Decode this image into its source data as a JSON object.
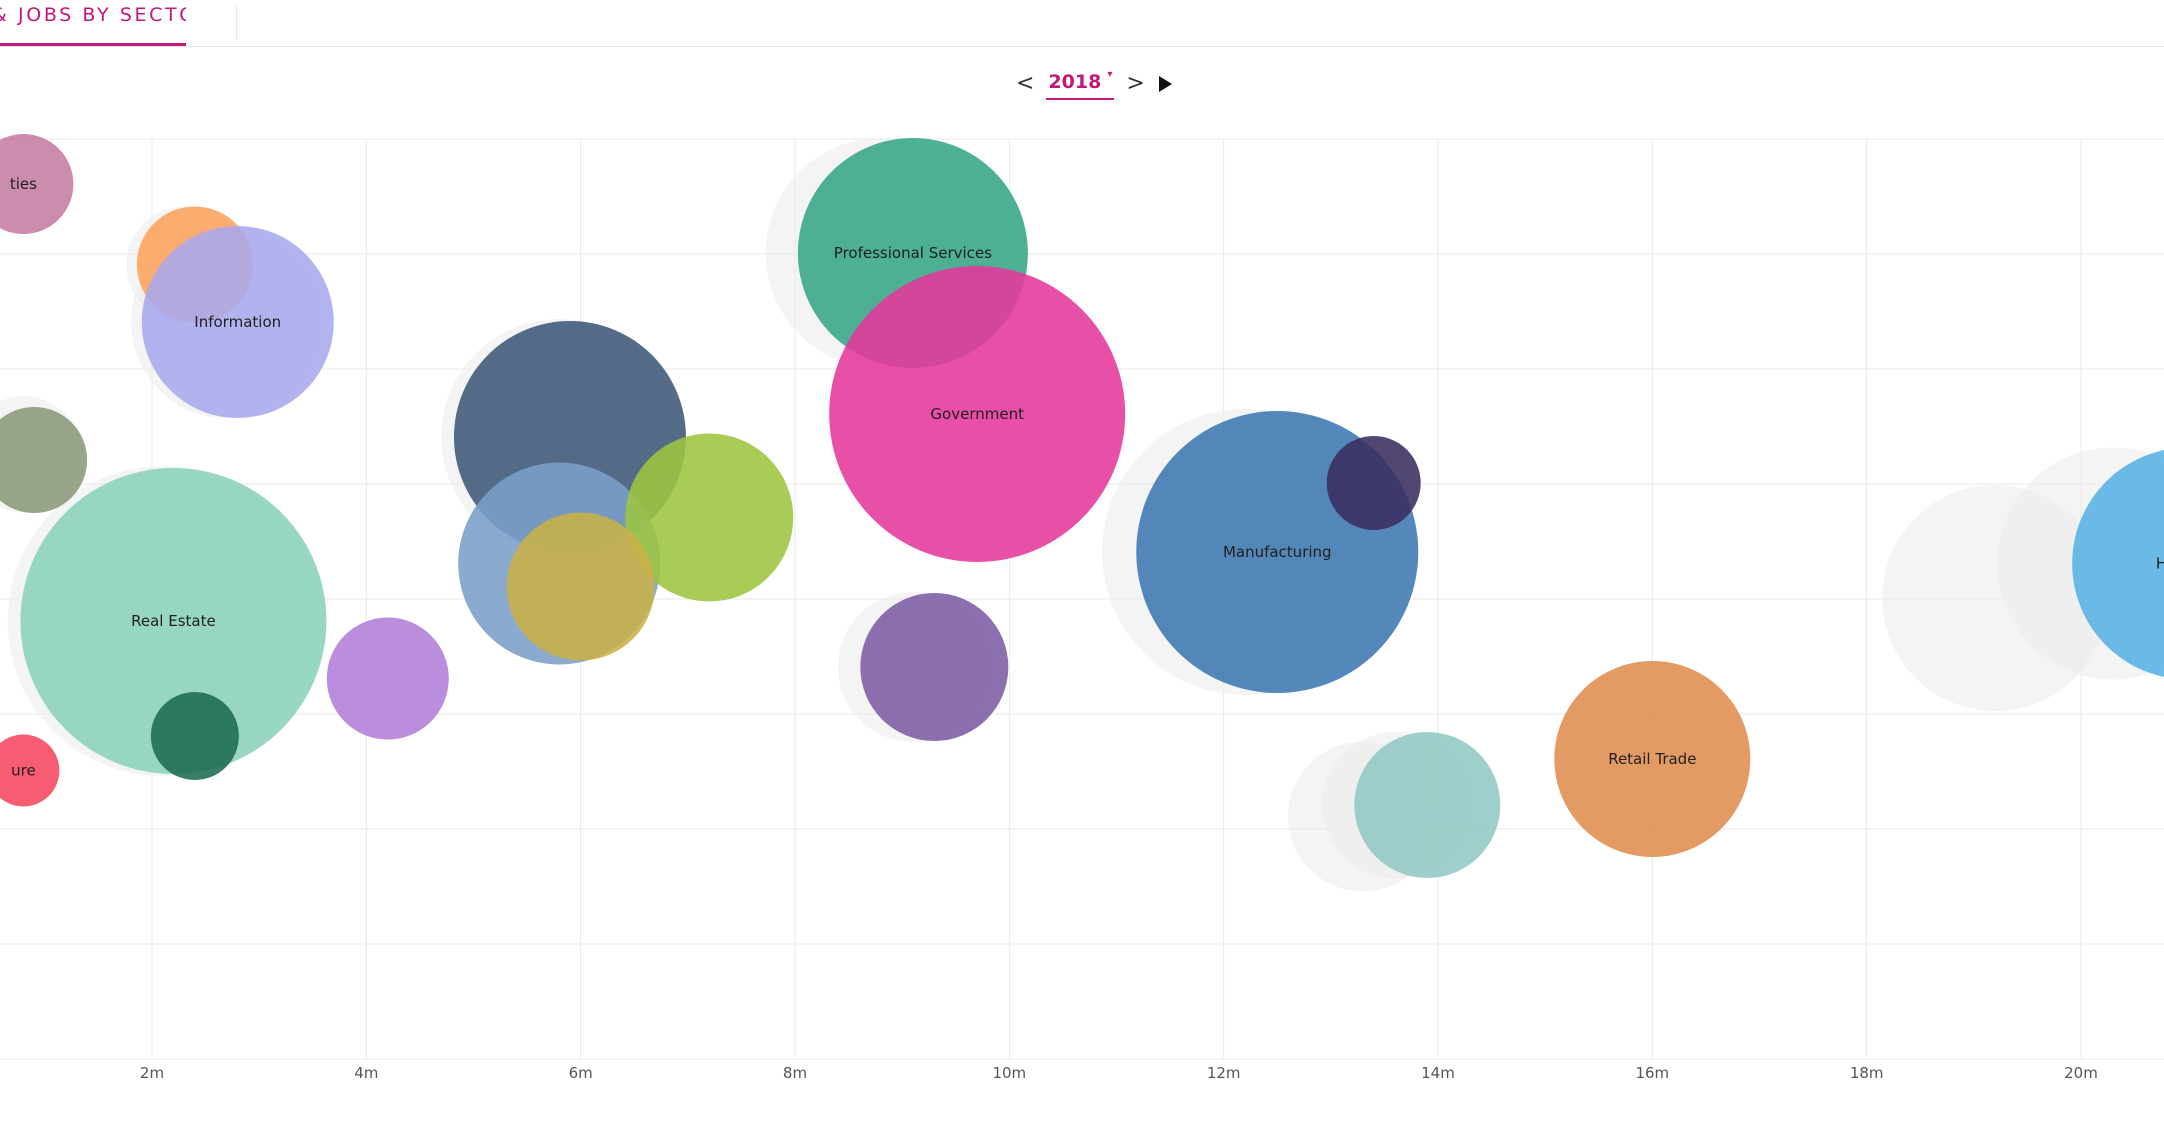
{
  "header": {
    "active_tab_label": "& JOBS BY SECTOR",
    "accent_color": "#c4177a"
  },
  "year_nav": {
    "prev_label": "<",
    "next_label": ">",
    "year": "2018",
    "caret": "▾",
    "play_icon": "play-icon"
  },
  "chart_data": {
    "type": "scatter",
    "subtype": "bubble",
    "title": "",
    "xlabel": "",
    "ylabel": "",
    "x_ticks": [
      "2m",
      "4m",
      "6m",
      "8m",
      "10m",
      "12m",
      "14m",
      "16m",
      "18m",
      "20m"
    ],
    "x_tick_values": [
      2,
      4,
      6,
      8,
      10,
      12,
      14,
      16,
      18,
      20
    ],
    "xlim": [
      0.6,
      20.7
    ],
    "y_levels": 8,
    "grid": true,
    "bubbles": [
      {
        "label": "ties",
        "x": 0.8,
        "level": 7.6,
        "r": 50,
        "color": "#c57ca3"
      },
      {
        "label": "",
        "x": 2.4,
        "level": 6.9,
        "r": 58,
        "color": "#fba35b"
      },
      {
        "label": "Information",
        "x": 2.8,
        "level": 6.4,
        "r": 96,
        "color": "#a9a9ee"
      },
      {
        "label": "",
        "x": 0.9,
        "level": 5.2,
        "r": 53,
        "color": "#8a9978"
      },
      {
        "label": "Real Estate",
        "x": 2.2,
        "level": 3.8,
        "r": 153,
        "color": "#89d2bc"
      },
      {
        "label": "",
        "x": 2.4,
        "level": 2.8,
        "r": 44,
        "color": "#1d6b50"
      },
      {
        "label": "ure",
        "x": 0.8,
        "level": 2.5,
        "r": 36,
        "color": "#f5465e"
      },
      {
        "label": "",
        "x": 4.2,
        "level": 3.3,
        "r": 61,
        "color": "#b07ed8"
      },
      {
        "label": "",
        "x": 5.9,
        "level": 5.4,
        "r": 116,
        "color": "#3d5878"
      },
      {
        "label": "",
        "x": 5.8,
        "level": 4.3,
        "r": 101,
        "color": "#7a9fc8"
      },
      {
        "label": "",
        "x": 7.2,
        "level": 4.7,
        "r": 84,
        "color": "#9dc540"
      },
      {
        "label": "",
        "x": 6.0,
        "level": 4.1,
        "r": 74,
        "color": "#c8b147"
      },
      {
        "label": "Professional Services",
        "x": 9.1,
        "level": 7.0,
        "r": 115,
        "color": "#36a585"
      },
      {
        "label": "Government",
        "x": 9.7,
        "level": 5.6,
        "r": 148,
        "color": "#e5389b"
      },
      {
        "label": "",
        "x": 9.3,
        "level": 3.4,
        "r": 74,
        "color": "#7b5ba4"
      },
      {
        "label": "Manufacturing",
        "x": 12.5,
        "level": 4.4,
        "r": 141,
        "color": "#3e78b0"
      },
      {
        "label": "",
        "x": 13.4,
        "level": 5.0,
        "r": 47,
        "color": "#3a2e5e"
      },
      {
        "label": "",
        "x": 13.9,
        "level": 2.2,
        "r": 73,
        "color": "#92c8c3"
      },
      {
        "label": "Retail Trade",
        "x": 16.0,
        "level": 2.6,
        "r": 98,
        "color": "#df8c4d"
      },
      {
        "label": "Health C",
        "x": 21.0,
        "level": 4.3,
        "r": 116,
        "color": "#57b2e2"
      }
    ],
    "ghost_bubbles": [
      {
        "x": 2.3,
        "level": 6.9,
        "r": 58
      },
      {
        "x": 2.7,
        "level": 6.4,
        "r": 96
      },
      {
        "x": 0.8,
        "level": 5.25,
        "r": 58
      },
      {
        "x": 2.1,
        "level": 3.8,
        "r": 155
      },
      {
        "x": 5.8,
        "level": 5.4,
        "r": 118
      },
      {
        "x": 8.8,
        "level": 7.0,
        "r": 115
      },
      {
        "x": 9.1,
        "level": 3.4,
        "r": 75
      },
      {
        "x": 12.2,
        "level": 4.4,
        "r": 143
      },
      {
        "x": 13.3,
        "level": 2.1,
        "r": 75
      },
      {
        "x": 13.6,
        "level": 2.2,
        "r": 73
      },
      {
        "x": 19.2,
        "level": 4.0,
        "r": 113
      },
      {
        "x": 20.3,
        "level": 4.3,
        "r": 116
      }
    ]
  }
}
